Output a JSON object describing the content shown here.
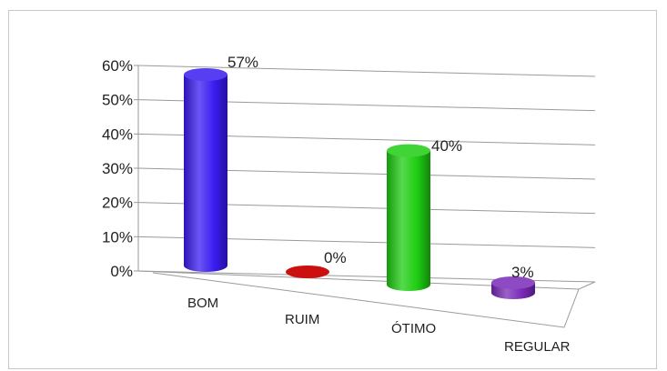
{
  "chart_data": {
    "type": "bar",
    "bar_shape": "cylinder-3d",
    "categories": [
      "BOM",
      "RUIM",
      "ÓTIMO",
      "REGULAR"
    ],
    "values": [
      57,
      0,
      40,
      3
    ],
    "value_labels": [
      "57%",
      "0%",
      "40%",
      "3%"
    ],
    "colors": [
      "#3a1cf0",
      "#cc1010",
      "#1ecc12",
      "#7a2ab8"
    ],
    "ylim": [
      0,
      60
    ],
    "yticks": [
      0,
      10,
      20,
      30,
      40,
      50,
      60
    ],
    "ytick_labels": [
      "0%",
      "10%",
      "20%",
      "30%",
      "40%",
      "50%",
      "60%"
    ],
    "grid": true,
    "legend": "none",
    "title": "",
    "xlabel": "",
    "ylabel": ""
  }
}
